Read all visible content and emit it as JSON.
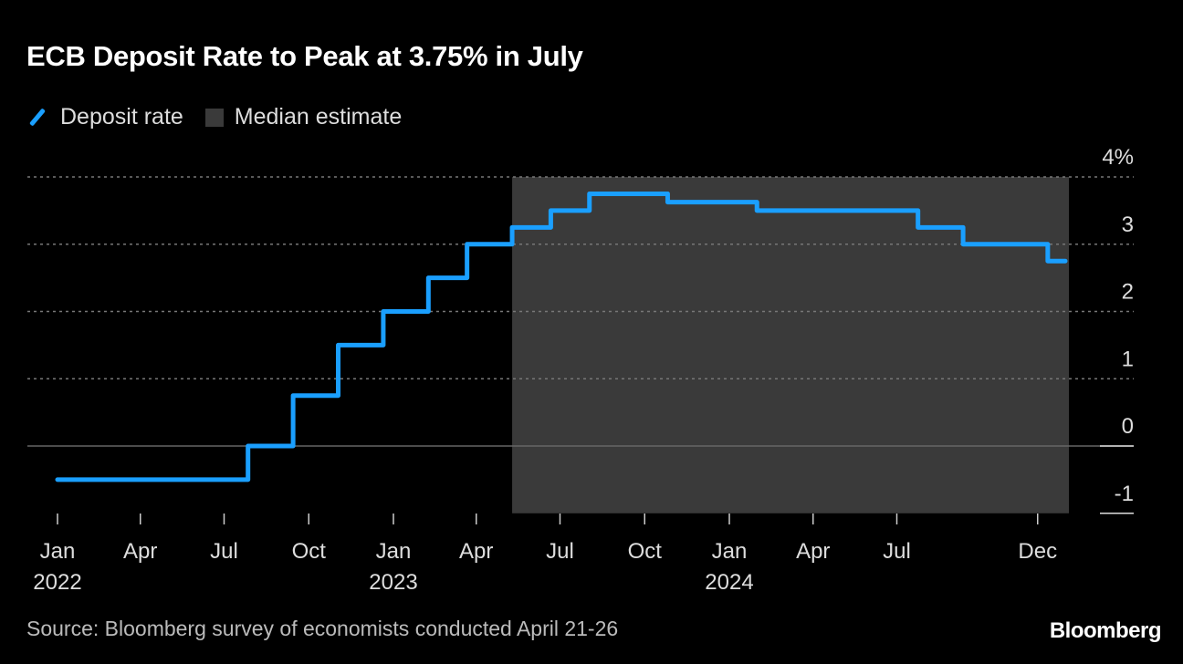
{
  "chart_data": {
    "type": "line",
    "title": "ECB Deposit Rate to Peak at 3.75% in July",
    "legend": [
      {
        "name": "Deposit rate",
        "color": "#1a9fff",
        "kind": "line"
      },
      {
        "name": "Median estimate",
        "color": "#3a3a3a",
        "kind": "box"
      }
    ],
    "legend_position": "top-left",
    "step": true,
    "series": [
      {
        "name": "Deposit rate",
        "color": "#1a9fff",
        "points": [
          [
            "2022-01-01",
            -0.5
          ],
          [
            "2022-07-27",
            0.0
          ],
          [
            "2022-09-14",
            0.75
          ],
          [
            "2022-11-02",
            1.5
          ],
          [
            "2022-12-21",
            2.0
          ],
          [
            "2023-02-08",
            2.5
          ],
          [
            "2023-03-22",
            3.0
          ],
          [
            "2023-05-10",
            3.25
          ],
          [
            "2023-06-21",
            3.5
          ],
          [
            "2023-08-02",
            3.75
          ],
          [
            "2023-10-26",
            3.625
          ],
          [
            "2024-01-31",
            3.5
          ],
          [
            "2024-07-24",
            3.25
          ],
          [
            "2024-09-11",
            3.0
          ],
          [
            "2024-12-12",
            2.75
          ],
          [
            "2024-12-31",
            2.75
          ]
        ]
      }
    ],
    "shaded_region": {
      "name": "Median estimate",
      "from": "2023-05-10",
      "to": "2024-12-31",
      "color": "#3a3a3a"
    },
    "ylim": [
      -1,
      4
    ],
    "yticks": [
      -1,
      0,
      1,
      2,
      3,
      4
    ],
    "ytick_labels": [
      "-1",
      "0",
      "1",
      "2",
      "3",
      "4%"
    ],
    "y_axis_side": "right",
    "grid": "dotted horizontal",
    "xlim": [
      "2021-12-01",
      "2025-01-15"
    ],
    "xticks": [
      {
        "date": "2022-01-01",
        "label": "Jan",
        "year": "2022"
      },
      {
        "date": "2022-04-01",
        "label": "Apr",
        "year": ""
      },
      {
        "date": "2022-07-01",
        "label": "Jul",
        "year": ""
      },
      {
        "date": "2022-10-01",
        "label": "Oct",
        "year": ""
      },
      {
        "date": "2023-01-01",
        "label": "Jan",
        "year": "2023"
      },
      {
        "date": "2023-04-01",
        "label": "Apr",
        "year": ""
      },
      {
        "date": "2023-07-01",
        "label": "Jul",
        "year": ""
      },
      {
        "date": "2023-10-01",
        "label": "Oct",
        "year": ""
      },
      {
        "date": "2024-01-01",
        "label": "Jan",
        "year": "2024"
      },
      {
        "date": "2024-04-01",
        "label": "Apr",
        "year": ""
      },
      {
        "date": "2024-07-01",
        "label": "Jul",
        "year": ""
      },
      {
        "date": "2024-12-01",
        "label": "Dec",
        "year": ""
      }
    ],
    "xlabel": "",
    "ylabel": ""
  },
  "source": "Source: Bloomberg survey of economists conducted April 21-26",
  "logo": "Bloomberg"
}
